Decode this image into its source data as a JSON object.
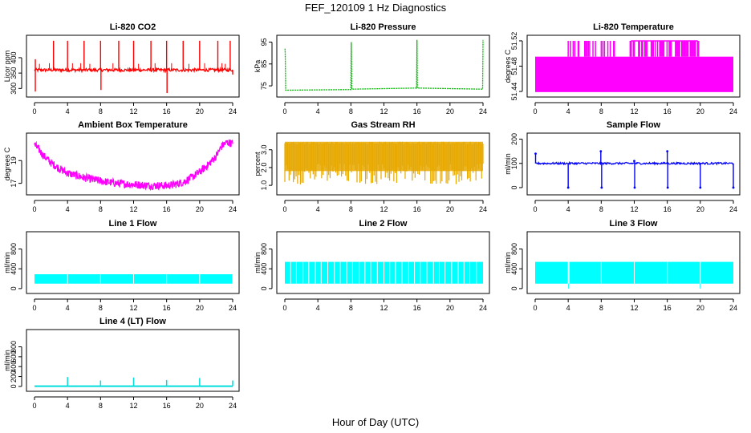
{
  "figure": {
    "title": "FEF_120109  1 Hz Diagnostics",
    "xlabel": "Hour of Day (UTC)"
  },
  "chart_data": [
    {
      "id": "co2",
      "type": "line",
      "title": "Li-820 CO2",
      "ylabel": "Licor ppm",
      "color": "#ff0000",
      "xlim": [
        0,
        24
      ],
      "x_ticks": [
        0,
        4,
        8,
        12,
        16,
        20,
        24
      ],
      "ylim": [
        280,
        465
      ],
      "y_ticks": [
        300,
        350,
        400
      ],
      "baseline": 360,
      "noise": 5,
      "spikes": [
        [
          0.1,
          395
        ],
        [
          0.1,
          290
        ],
        [
          2.3,
          455
        ],
        [
          4.0,
          455
        ],
        [
          6.0,
          455
        ],
        [
          8.0,
          455
        ],
        [
          8.05,
          295
        ],
        [
          10.2,
          455
        ],
        [
          12.0,
          455
        ],
        [
          14.1,
          455
        ],
        [
          16.0,
          455
        ],
        [
          16.05,
          285
        ],
        [
          18.0,
          455
        ],
        [
          20.0,
          455
        ],
        [
          22.2,
          455
        ],
        [
          23.7,
          455
        ],
        [
          24.0,
          345
        ]
      ],
      "minor_spikes": [
        [
          0.6,
          380
        ],
        [
          1.8,
          382
        ],
        [
          4.6,
          382
        ],
        [
          5.6,
          382
        ],
        [
          6.7,
          380
        ],
        [
          9.5,
          382
        ],
        [
          12.6,
          380
        ],
        [
          14.6,
          382
        ],
        [
          16.6,
          382
        ],
        [
          18.7,
          380
        ],
        [
          20.6,
          382
        ],
        [
          22.7,
          382
        ],
        [
          23.1,
          380
        ]
      ]
    },
    {
      "id": "pressure",
      "type": "line",
      "title": "Li-820 Pressure",
      "ylabel": "kPa",
      "color": "#00bb00",
      "xlim": [
        0,
        24
      ],
      "x_ticks": [
        0,
        4,
        8,
        12,
        16,
        20,
        24
      ],
      "ylim": [
        71,
        97
      ],
      "y_ticks": [
        75,
        85,
        95
      ],
      "segments": [
        [
          0.05,
          90
        ],
        [
          0.1,
          73
        ],
        [
          8.0,
          73.3
        ],
        [
          8.05,
          95
        ],
        [
          8.1,
          73.5
        ],
        [
          15.95,
          74
        ],
        [
          16.0,
          96
        ],
        [
          16.05,
          74
        ],
        [
          23.95,
          73.5
        ],
        [
          24.0,
          96
        ]
      ],
      "baseline_dip": [
        [
          2,
          72.8
        ],
        [
          6,
          72.9
        ]
      ]
    },
    {
      "id": "licor-temp",
      "type": "area",
      "title": "Li-820 Temperature",
      "ylabel": "degrees C",
      "color": "#ff00ff",
      "xlim": [
        0,
        24
      ],
      "x_ticks": [
        0,
        4,
        8,
        12,
        16,
        20,
        24
      ],
      "ylim": [
        51.435,
        51.525
      ],
      "y_ticks": [
        51.44,
        51.48,
        51.52
      ],
      "fill_level": 51.495,
      "upper_level": 51.52,
      "upper_bursts": [
        [
          4.0,
          4.3
        ],
        [
          4.6,
          4.8
        ],
        [
          5.2,
          5.3
        ],
        [
          6.0,
          6.6
        ],
        [
          7.0,
          7.3
        ],
        [
          8.0,
          8.4
        ],
        [
          8.8,
          9.1
        ],
        [
          9.5,
          9.6
        ],
        [
          11.5,
          19.8
        ]
      ]
    },
    {
      "id": "box-temp",
      "type": "line",
      "title": "Ambient Box Temperature",
      "ylabel": "degrees C",
      "color": "#ff00ff",
      "xlim": [
        0,
        24
      ],
      "x_ticks": [
        0,
        4,
        8,
        12,
        16,
        20,
        24
      ],
      "ylim": [
        16.2,
        21.2
      ],
      "y_ticks": [
        17,
        19
      ],
      "curve": [
        [
          0,
          20.4
        ],
        [
          0.5,
          20.0
        ],
        [
          1,
          19.5
        ],
        [
          2,
          18.8
        ],
        [
          3,
          18.3
        ],
        [
          4,
          17.9
        ],
        [
          6,
          17.5
        ],
        [
          8,
          17.2
        ],
        [
          10,
          17.0
        ],
        [
          12,
          16.9
        ],
        [
          14,
          16.8
        ],
        [
          16,
          16.8
        ],
        [
          17,
          16.9
        ],
        [
          18,
          17.1
        ],
        [
          19,
          17.5
        ],
        [
          20,
          18.0
        ],
        [
          21,
          18.6
        ],
        [
          22,
          19.4
        ],
        [
          22.7,
          20.3
        ],
        [
          23.3,
          20.6
        ],
        [
          24,
          20.5
        ]
      ],
      "noise": 0.35
    },
    {
      "id": "rh",
      "type": "line",
      "title": "Gas Stream RH",
      "ylabel": "percent",
      "color": "#e6a800",
      "xlim": [
        0,
        24
      ],
      "x_ticks": [
        0,
        4,
        8,
        12,
        16,
        20,
        24
      ],
      "ylim": [
        0.6,
        3.8
      ],
      "y_ticks": [
        1.0,
        2.0,
        3.0
      ],
      "top_level": 3.45,
      "floor_level": 1.05
    },
    {
      "id": "sample-flow",
      "type": "line",
      "title": "Sample Flow",
      "ylabel": "ml/min",
      "color": "#0000ff",
      "xlim": [
        0,
        24
      ],
      "x_ticks": [
        0,
        4,
        8,
        12,
        16,
        20,
        24
      ],
      "ylim": [
        -20,
        215
      ],
      "y_ticks": [
        0,
        100,
        200
      ],
      "baseline": 100,
      "events": [
        [
          0.05,
          140
        ],
        [
          4.0,
          0
        ],
        [
          7.95,
          150
        ],
        [
          8.05,
          0
        ],
        [
          12.0,
          110
        ],
        [
          12.05,
          0
        ],
        [
          16.0,
          150
        ],
        [
          16.05,
          0
        ],
        [
          20.0,
          0
        ],
        [
          24.0,
          0
        ]
      ]
    },
    {
      "id": "line1",
      "type": "area",
      "title": "Line 1 Flow",
      "ylabel": "ml/min",
      "color": "#00ffff",
      "xlim": [
        0,
        24
      ],
      "x_ticks": [
        0,
        4,
        8,
        12,
        16,
        20,
        24
      ],
      "ylim": [
        -50,
        1100
      ],
      "y_ticks": [
        0,
        400,
        800
      ],
      "band": [
        100,
        290
      ],
      "gaps": [
        4,
        8,
        12,
        16,
        20,
        24
      ]
    },
    {
      "id": "line2",
      "type": "area",
      "title": "Line 2 Flow",
      "ylabel": "ml/min",
      "color": "#00ffff",
      "xlim": [
        0,
        24
      ],
      "x_ticks": [
        0,
        4,
        8,
        12,
        16,
        20,
        24
      ],
      "ylim": [
        -50,
        1100
      ],
      "y_ticks": [
        0,
        400,
        800
      ],
      "band": [
        100,
        540
      ],
      "gaps": [
        0.7,
        1.4,
        2.2,
        2.9,
        3.7,
        4.4,
        5.2,
        6.0,
        6.7,
        7.5,
        8.2,
        9.0,
        9.7,
        10.4,
        11.2,
        12.0,
        12.7,
        13.4,
        14.2,
        15.0,
        15.7,
        16.4,
        17.2,
        18.0,
        18.7,
        19.4,
        20.2,
        21.0,
        21.7,
        22.4,
        23.2
      ]
    },
    {
      "id": "line3",
      "type": "area",
      "title": "Line 3 Flow",
      "ylabel": "ml/min",
      "color": "#00ffff",
      "xlim": [
        0,
        24
      ],
      "x_ticks": [
        0,
        4,
        8,
        12,
        16,
        20,
        24
      ],
      "ylim": [
        -50,
        1100
      ],
      "y_ticks": [
        0,
        400,
        800
      ],
      "band": [
        100,
        540
      ],
      "gaps": [
        4,
        4.1,
        8,
        12,
        16,
        20
      ]
    },
    {
      "id": "line4",
      "type": "line",
      "title": "Line 4 (LT) Flow",
      "ylabel": "ml/min",
      "color": "#00dddd",
      "xlim": [
        0,
        24
      ],
      "x_ticks": [
        0,
        4,
        8,
        12,
        16,
        20,
        24
      ],
      "ylim": [
        -50,
        1100
      ],
      "y_ticks": [
        0,
        200,
        400,
        600,
        800
      ],
      "baseline": 5,
      "spikes": [
        [
          4.0,
          190
        ],
        [
          8.0,
          120
        ],
        [
          12.0,
          180
        ],
        [
          16.0,
          130
        ],
        [
          20.0,
          170
        ],
        [
          24.0,
          120
        ]
      ]
    }
  ]
}
